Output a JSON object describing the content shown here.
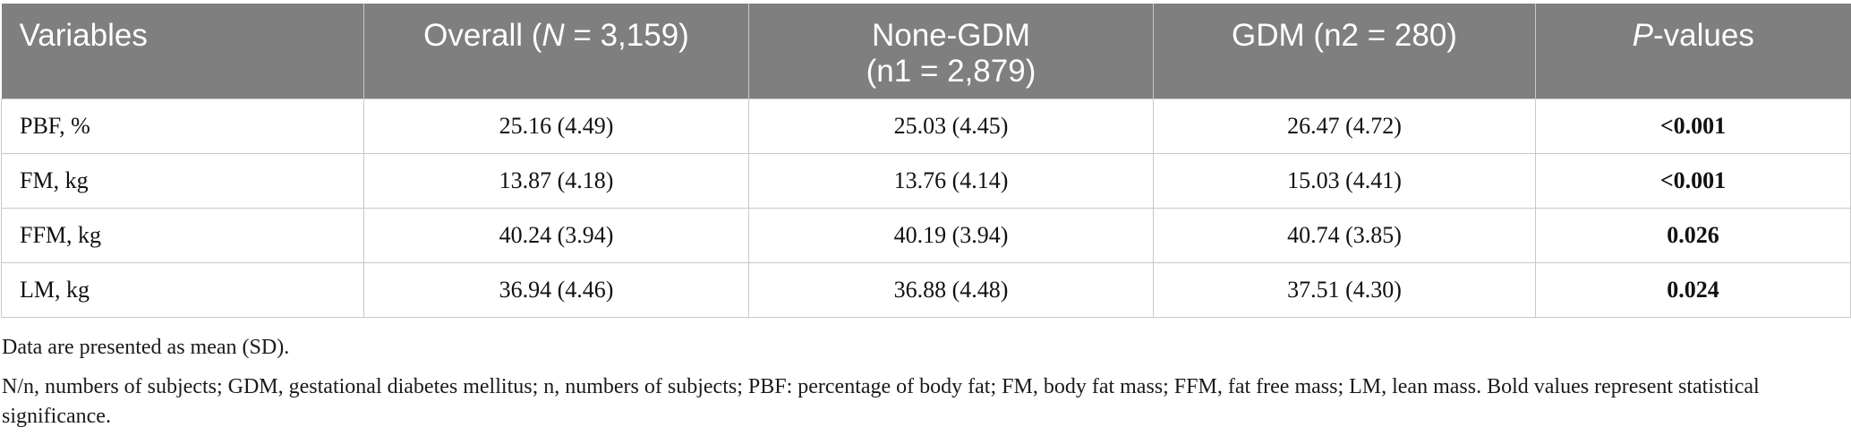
{
  "table": {
    "headers": [
      {
        "pre": "Variables",
        "em": "",
        "post": ""
      },
      {
        "pre": "Overall (",
        "em": "N",
        "post": " = 3,159)"
      },
      {
        "pre": "None-GDM",
        "em": "",
        "post": "",
        "line2": "(n1 = 2,879)"
      },
      {
        "pre": "GDM (n2 = 280)",
        "em": "",
        "post": ""
      },
      {
        "pre": "",
        "em": "P",
        "post": "-values"
      }
    ],
    "rows": [
      {
        "variable": "PBF, %",
        "overall": "25.16 (4.49)",
        "none_gdm": "25.03 (4.45)",
        "gdm": "26.47 (4.72)",
        "p": "<0.001"
      },
      {
        "variable": "FM, kg",
        "overall": "13.87 (4.18)",
        "none_gdm": "13.76 (4.14)",
        "gdm": "15.03 (4.41)",
        "p": "<0.001"
      },
      {
        "variable": "FFM, kg",
        "overall": "40.24 (3.94)",
        "none_gdm": "40.19 (3.94)",
        "gdm": "40.74 (3.85)",
        "p": "0.026"
      },
      {
        "variable": "LM, kg",
        "overall": "36.94 (4.46)",
        "none_gdm": "36.88 (4.48)",
        "gdm": "37.51 (4.30)",
        "p": "0.024"
      }
    ]
  },
  "notes": {
    "line1": "Data are presented as mean (SD).",
    "line2": "N/n, numbers of subjects; GDM, gestational diabetes mellitus; n, numbers of subjects; PBF: percentage of body fat; FM, body fat mass; FFM, fat free mass; LM, lean mass. Bold values represent statistical significance."
  },
  "colors": {
    "header_bg": "#7f7f7f",
    "header_text": "#ffffff",
    "grid": "#c8c8c8"
  }
}
